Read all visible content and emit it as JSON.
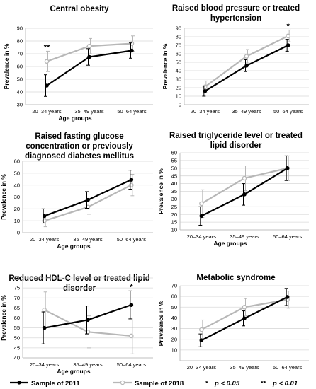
{
  "legend": {
    "series_2011": "Sample of 2011",
    "series_2018": "Sample of 2018",
    "sig_single": "*",
    "sig_single_text": "p < 0.05",
    "sig_double": "**",
    "sig_double_text": "p < 0.01"
  },
  "colors": {
    "series_2011": "#000000",
    "series_2018": "#b7b7b7"
  },
  "chart_data": [
    {
      "type": "line",
      "title": [
        "Central obesity"
      ],
      "categories": [
        "20–34 years",
        "35–49 years",
        "50–64 years"
      ],
      "xlabel": "Age groups",
      "ylabel": "Prevalence in %",
      "ylim": [
        30,
        90
      ],
      "yticks": [
        30,
        40,
        50,
        60,
        70,
        80,
        90
      ],
      "grid": true,
      "series": [
        {
          "name": "Sample of 2011",
          "values": [
            45,
            67.5,
            72.5
          ],
          "err": [
            8.5,
            6.5,
            6
          ]
        },
        {
          "name": "Sample of 2018",
          "values": [
            64,
            76,
            78
          ],
          "err": [
            8,
            6,
            6
          ]
        }
      ],
      "annotations": [
        {
          "category": 0,
          "text": "**"
        }
      ]
    },
    {
      "type": "line",
      "title": [
        "Raised blood pressure or treated",
        "hypertension"
      ],
      "categories": [
        "20–34 years",
        "35–49 years",
        "50–64 years"
      ],
      "xlabel": "",
      "ylabel": "Prevalence in %",
      "ylim": [
        0,
        90
      ],
      "yticks": [
        0,
        10,
        20,
        30,
        40,
        50,
        60,
        70,
        80,
        90
      ],
      "grid": true,
      "series": [
        {
          "name": "Sample of 2011",
          "values": [
            16,
            46,
            70
          ],
          "err": [
            6,
            7,
            7
          ]
        },
        {
          "name": "Sample of 2018",
          "values": [
            21,
            57,
            81
          ],
          "err": [
            7,
            8,
            7
          ]
        }
      ],
      "annotations": [
        {
          "category": 2,
          "text": "*"
        }
      ]
    },
    {
      "type": "line",
      "title": [
        "Raised fasting glucose",
        "concentration or previously",
        "diagnosed diabetes mellitus"
      ],
      "categories": [
        "20–34 years",
        "35–49 years",
        "50–64 years"
      ],
      "xlabel": "Age groups",
      "ylabel": "Prevalence in %",
      "ylim": [
        0,
        60
      ],
      "yticks": [
        0,
        10,
        20,
        30,
        40,
        50,
        60
      ],
      "grid": true,
      "series": [
        {
          "name": "Sample of 2011",
          "values": [
            14,
            27.5,
            44.5
          ],
          "err": [
            6,
            7,
            8
          ]
        },
        {
          "name": "Sample of 2018",
          "values": [
            10,
            21.5,
            40
          ],
          "err": [
            5,
            6,
            9
          ]
        }
      ],
      "annotations": []
    },
    {
      "type": "line",
      "title": [
        "Raised triglyceride level or treated",
        "lipid disorder"
      ],
      "categories": [
        "20–34 years",
        "35–49 years",
        "50–64 years"
      ],
      "xlabel": "Age groups",
      "ylabel": "Prevalence in %",
      "ylim": [
        10,
        60
      ],
      "yticks": [
        10,
        15,
        20,
        25,
        30,
        35,
        40,
        45,
        50,
        55,
        60
      ],
      "grid": true,
      "series": [
        {
          "name": "Sample of 2011",
          "values": [
            19,
            33,
            50
          ],
          "err": [
            6,
            7,
            8
          ]
        },
        {
          "name": "Sample of 2018",
          "values": [
            27,
            43.5,
            50
          ],
          "err": [
            9,
            8,
            8
          ]
        }
      ],
      "annotations": []
    },
    {
      "type": "line",
      "title": [
        "Reduced HDL-C level or treated lipid",
        "disorder"
      ],
      "categories": [
        "20–34 years",
        "35–49 years",
        "50–64 years"
      ],
      "xlabel": "Age groups",
      "ylabel": "Prevalence in %",
      "ylim": [
        40,
        80
      ],
      "yticks": [
        40,
        45,
        50,
        55,
        60,
        65,
        70,
        75,
        80
      ],
      "grid": true,
      "series": [
        {
          "name": "Sample of 2011",
          "values": [
            55,
            59,
            66.5
          ],
          "err": [
            8,
            7,
            7
          ]
        },
        {
          "name": "Sample of 2018",
          "values": [
            64,
            53,
            51
          ],
          "err": [
            9,
            8,
            9
          ]
        }
      ],
      "annotations": [
        {
          "category": 2,
          "text": "*"
        }
      ]
    },
    {
      "type": "line",
      "title": [
        "Metabolic syndrome"
      ],
      "categories": [
        "20–34 years",
        "35–49 years",
        "50–64 years"
      ],
      "xlabel": "",
      "ylabel": "Prevalence in %",
      "ylim": [
        0,
        70
      ],
      "yticks": [
        10,
        20,
        30,
        40,
        50,
        60,
        70
      ],
      "grid": true,
      "series": [
        {
          "name": "Sample of 2011",
          "values": [
            19,
            39.5,
            59.5
          ],
          "err": [
            6,
            7,
            8
          ]
        },
        {
          "name": "Sample of 2018",
          "values": [
            29,
            50,
            57
          ],
          "err": [
            9,
            8,
            8
          ]
        }
      ],
      "annotations": []
    }
  ]
}
